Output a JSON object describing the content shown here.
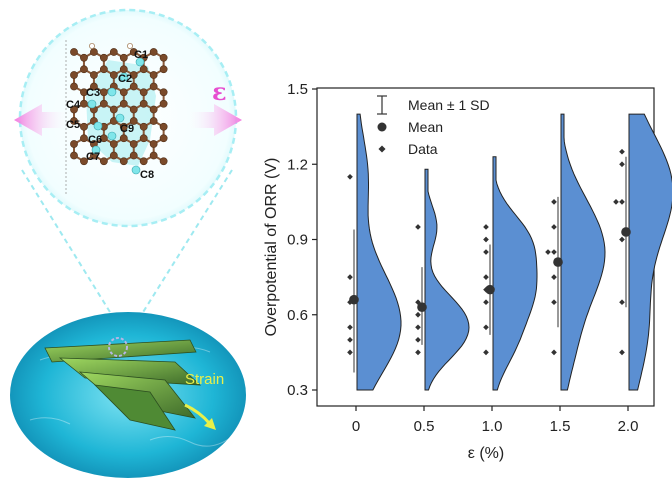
{
  "illustration": {
    "atom_labels": [
      "C1",
      "C2",
      "C3",
      "C4",
      "C5",
      "C6",
      "C7",
      "C8",
      "C9"
    ],
    "strain_label": "Strain",
    "epsilon_symbol": "ε"
  },
  "chart_data": {
    "type": "half-violin",
    "xlabel": "ε (%)",
    "ylabel": "Overpotential of ORR (V)",
    "categories": [
      "0",
      "0.5",
      "1.0",
      "1.5",
      "2.0"
    ],
    "ylim": [
      0.3,
      1.5
    ],
    "yticks": [
      "0.3",
      "0.6",
      "0.9",
      "1.2",
      "1.5"
    ],
    "legend": {
      "position": "top-left",
      "entries": [
        "Mean ± 1 SD",
        "Mean",
        "Data"
      ]
    },
    "colors": {
      "violin": "#5b8fd2",
      "mean": "#333333",
      "data": "#333333"
    },
    "series": [
      {
        "category": "0",
        "mean": 0.66,
        "sd_low": 0.37,
        "sd_high": 0.94,
        "range": [
          0.3,
          1.4
        ],
        "data": [
          1.15,
          0.75,
          0.65,
          0.55,
          0.5,
          0.45
        ]
      },
      {
        "category": "0.5",
        "mean": 0.63,
        "sd_low": 0.48,
        "sd_high": 0.79,
        "range": [
          0.3,
          1.18
        ],
        "data": [
          0.95,
          0.65,
          0.6,
          0.55,
          0.5,
          0.45
        ]
      },
      {
        "category": "1.0",
        "mean": 0.7,
        "sd_low": 0.52,
        "sd_high": 0.88,
        "range": [
          0.3,
          1.23
        ],
        "data": [
          0.95,
          0.9,
          0.85,
          0.75,
          0.7,
          0.65,
          0.55,
          0.45
        ]
      },
      {
        "category": "1.5",
        "mean": 0.81,
        "sd_low": 0.55,
        "sd_high": 1.07,
        "range": [
          0.3,
          1.4
        ],
        "data": [
          1.05,
          0.95,
          0.85,
          0.85,
          0.75,
          0.65,
          0.45
        ]
      },
      {
        "category": "2.0",
        "mean": 0.93,
        "sd_low": 0.63,
        "sd_high": 1.23,
        "range": [
          0.3,
          1.4
        ],
        "data": [
          1.25,
          1.2,
          1.05,
          1.05,
          0.9,
          0.65,
          0.45
        ]
      }
    ]
  }
}
